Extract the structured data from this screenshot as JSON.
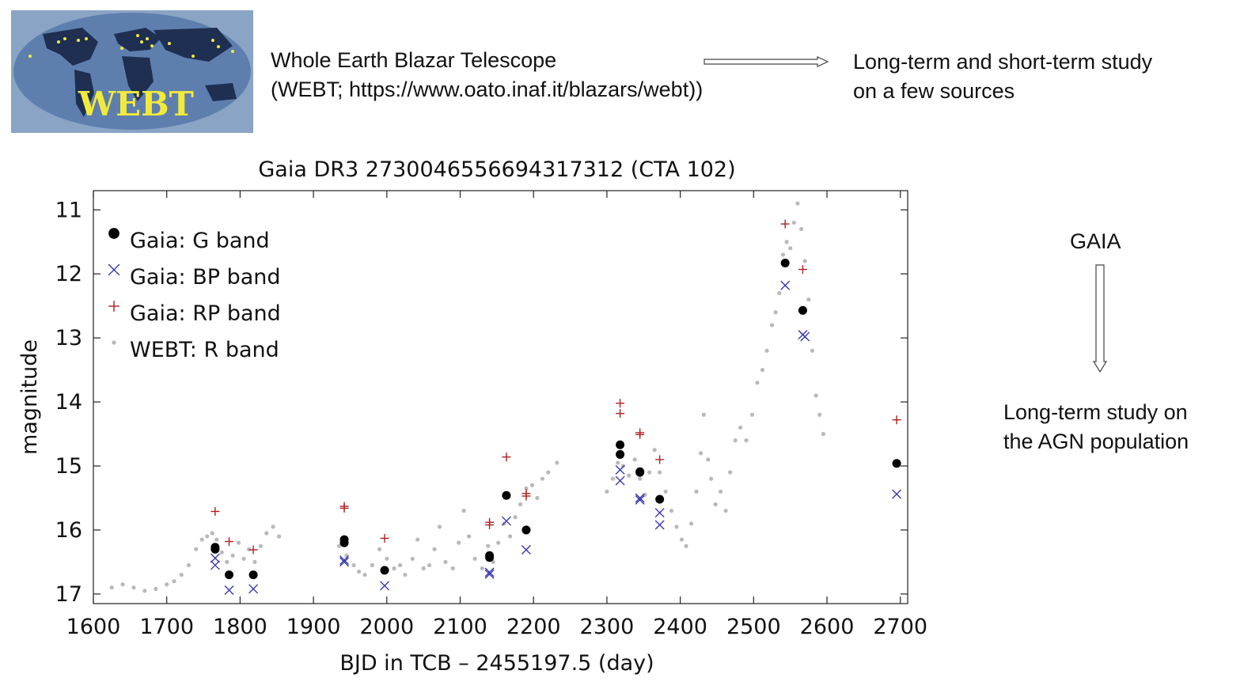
{
  "webt_logo": {
    "label": "WEBT"
  },
  "webt": {
    "line1": "Whole Earth Blazar Telescope",
    "line2": "(WEBT; https://www.oato.inaf.it/blazars/webt))",
    "note1": "Long-term and short-term study",
    "note2": "on a few sources"
  },
  "gaia": {
    "title": "GAIA",
    "note1": "Long-term study on",
    "note2": "the AGN population"
  },
  "colors": {
    "gaia_g": "#000000",
    "gaia_bp": "#3a3ab0",
    "gaia_rp": "#b02020",
    "webt_r": "#a8a8a8",
    "logo_bg": "#5e7fae",
    "logo_land": "#1e2f52",
    "logo_text": "#f2ea3a"
  },
  "chart_data": {
    "type": "scatter",
    "title": "Gaia DR3 2730046556694317312 (CTA 102)",
    "xlabel": "BJD in TCB – 2455197.5 (day)",
    "ylabel": "magnitude",
    "xlim": [
      1600,
      2710
    ],
    "ylim": [
      17.15,
      10.7
    ],
    "y_inverted": true,
    "grid": false,
    "legend_position": "top-left",
    "x_ticks": [
      1600,
      1700,
      1800,
      1900,
      2000,
      2100,
      2200,
      2300,
      2400,
      2500,
      2600,
      2700
    ],
    "y_ticks": [
      11,
      12,
      13,
      14,
      15,
      16,
      17
    ],
    "series": [
      {
        "name": "Gaia: G band",
        "marker": "circle",
        "points": [
          [
            1766,
            16.27
          ],
          [
            1766,
            16.3
          ],
          [
            1785,
            16.7
          ],
          [
            1818,
            16.7
          ],
          [
            1942,
            16.15
          ],
          [
            1942,
            16.2
          ],
          [
            1997,
            16.63
          ],
          [
            2140,
            16.4
          ],
          [
            2140,
            16.43
          ],
          [
            2163,
            15.46
          ],
          [
            2190,
            16.0
          ],
          [
            2318,
            14.67
          ],
          [
            2318,
            14.82
          ],
          [
            2345,
            15.09
          ],
          [
            2345,
            15.1
          ],
          [
            2372,
            15.52
          ],
          [
            2543,
            11.83
          ],
          [
            2567,
            12.57
          ],
          [
            2695,
            14.96
          ]
        ]
      },
      {
        "name": "Gaia: BP band",
        "marker": "x",
        "points": [
          [
            1766,
            16.44
          ],
          [
            1766,
            16.55
          ],
          [
            1785,
            16.94
          ],
          [
            1818,
            16.92
          ],
          [
            1942,
            16.47
          ],
          [
            1942,
            16.5
          ],
          [
            1997,
            16.87
          ],
          [
            2140,
            16.66
          ],
          [
            2140,
            16.69
          ],
          [
            2163,
            15.86
          ],
          [
            2190,
            16.31
          ],
          [
            2318,
            15.06
          ],
          [
            2318,
            15.23
          ],
          [
            2345,
            15.5
          ],
          [
            2345,
            15.53
          ],
          [
            2372,
            15.73
          ],
          [
            2372,
            15.92
          ],
          [
            2543,
            12.18
          ],
          [
            2567,
            12.95
          ],
          [
            2570,
            12.98
          ],
          [
            2695,
            15.44
          ]
        ]
      },
      {
        "name": "Gaia: RP band",
        "marker": "plus",
        "points": [
          [
            1766,
            15.71
          ],
          [
            1785,
            16.18
          ],
          [
            1818,
            16.31
          ],
          [
            1942,
            15.63
          ],
          [
            1942,
            15.66
          ],
          [
            1997,
            16.13
          ],
          [
            2140,
            15.88
          ],
          [
            2140,
            15.92
          ],
          [
            2163,
            14.86
          ],
          [
            2190,
            15.43
          ],
          [
            2190,
            15.47
          ],
          [
            2318,
            14.02
          ],
          [
            2318,
            14.18
          ],
          [
            2345,
            14.48
          ],
          [
            2345,
            14.51
          ],
          [
            2372,
            14.9
          ],
          [
            2543,
            11.22
          ],
          [
            2567,
            11.93
          ],
          [
            2695,
            14.28
          ]
        ]
      },
      {
        "name": "WEBT: R band",
        "marker": "dot",
        "points": [
          [
            1625,
            16.9
          ],
          [
            1640,
            16.85
          ],
          [
            1655,
            16.9
          ],
          [
            1670,
            16.95
          ],
          [
            1685,
            16.92
          ],
          [
            1700,
            16.85
          ],
          [
            1710,
            16.8
          ],
          [
            1720,
            16.7
          ],
          [
            1730,
            16.55
          ],
          [
            1740,
            16.3
          ],
          [
            1748,
            16.15
          ],
          [
            1755,
            16.1
          ],
          [
            1762,
            16.05
          ],
          [
            1768,
            16.15
          ],
          [
            1775,
            16.35
          ],
          [
            1782,
            16.5
          ],
          [
            1790,
            16.4
          ],
          [
            1798,
            16.2
          ],
          [
            1805,
            16.45
          ],
          [
            1812,
            16.3
          ],
          [
            1820,
            16.5
          ],
          [
            1828,
            16.25
          ],
          [
            1836,
            16.05
          ],
          [
            1845,
            15.95
          ],
          [
            1853,
            16.1
          ],
          [
            1935,
            16.25
          ],
          [
            1945,
            16.4
          ],
          [
            1955,
            16.55
          ],
          [
            1962,
            16.65
          ],
          [
            1970,
            16.7
          ],
          [
            1980,
            16.55
          ],
          [
            1990,
            16.3
          ],
          [
            2000,
            16.45
          ],
          [
            2010,
            16.6
          ],
          [
            2018,
            16.55
          ],
          [
            2025,
            16.7
          ],
          [
            2035,
            16.45
          ],
          [
            2042,
            16.15
          ],
          [
            2050,
            16.6
          ],
          [
            2058,
            16.55
          ],
          [
            2065,
            16.3
          ],
          [
            2072,
            15.95
          ],
          [
            2080,
            16.5
          ],
          [
            2090,
            16.6
          ],
          [
            2098,
            16.2
          ],
          [
            2105,
            15.7
          ],
          [
            2112,
            16.1
          ],
          [
            2120,
            16.45
          ],
          [
            2130,
            16.6
          ],
          [
            2138,
            16.25
          ],
          [
            2145,
            16.5
          ],
          [
            2152,
            16.2
          ],
          [
            2160,
            15.9
          ],
          [
            2168,
            16.1
          ],
          [
            2175,
            15.8
          ],
          [
            2182,
            15.6
          ],
          [
            2190,
            15.35
          ],
          [
            2198,
            15.3
          ],
          [
            2205,
            15.5
          ],
          [
            2212,
            15.2
          ],
          [
            2220,
            15.1
          ],
          [
            2232,
            14.95
          ],
          [
            2300,
            15.4
          ],
          [
            2308,
            15.2
          ],
          [
            2315,
            14.95
          ],
          [
            2322,
            15.0
          ],
          [
            2330,
            15.15
          ],
          [
            2338,
            14.9
          ],
          [
            2345,
            15.2
          ],
          [
            2352,
            15.45
          ],
          [
            2358,
            15.1
          ],
          [
            2365,
            14.75
          ],
          [
            2372,
            15.1
          ],
          [
            2380,
            15.4
          ],
          [
            2388,
            15.7
          ],
          [
            2395,
            15.95
          ],
          [
            2402,
            16.15
          ],
          [
            2408,
            16.25
          ],
          [
            2415,
            15.9
          ],
          [
            2422,
            15.4
          ],
          [
            2428,
            14.8
          ],
          [
            2432,
            14.2
          ],
          [
            2438,
            14.9
          ],
          [
            2442,
            15.2
          ],
          [
            2448,
            15.6
          ],
          [
            2455,
            15.4
          ],
          [
            2462,
            15.7
          ],
          [
            2468,
            15.1
          ],
          [
            2475,
            14.6
          ],
          [
            2482,
            14.4
          ],
          [
            2490,
            14.6
          ],
          [
            2498,
            14.2
          ],
          [
            2505,
            13.7
          ],
          [
            2512,
            13.5
          ],
          [
            2518,
            13.2
          ],
          [
            2525,
            12.8
          ],
          [
            2530,
            12.6
          ],
          [
            2535,
            12.3
          ],
          [
            2540,
            11.7
          ],
          [
            2545,
            11.5
          ],
          [
            2550,
            11.6
          ],
          [
            2555,
            11.2
          ],
          [
            2560,
            10.9
          ],
          [
            2565,
            11.3
          ],
          [
            2570,
            11.8
          ],
          [
            2575,
            12.4
          ],
          [
            2580,
            13.2
          ],
          [
            2585,
            13.9
          ],
          [
            2590,
            14.2
          ],
          [
            2595,
            14.5
          ]
        ]
      }
    ]
  }
}
